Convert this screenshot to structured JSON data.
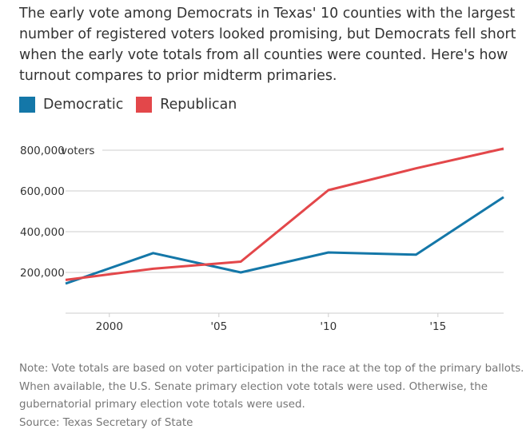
{
  "description": "The early vote among Democrats in Texas' 10 counties with the largest number of registered voters looked promising, but Democrats fell short when the early vote totals from all counties were counted. Here's how turnout compares to prior midterm primaries.",
  "legend": [
    {
      "label": "Democratic",
      "color": "#1477a8"
    },
    {
      "label": "Republican",
      "color": "#e3474a"
    }
  ],
  "chart_data": {
    "type": "line",
    "ylabel": "voters",
    "ylim": [
      0,
      800000
    ],
    "xlim": [
      1998,
      2018
    ],
    "y_ticks": [
      {
        "value": 200000,
        "label": "200,000"
      },
      {
        "value": 400000,
        "label": "400,000"
      },
      {
        "value": 600000,
        "label": "600,000"
      },
      {
        "value": 800000,
        "label": "800,000"
      }
    ],
    "x_ticks": [
      {
        "value": 2000,
        "label": "2000"
      },
      {
        "value": 2005,
        "label": "'05"
      },
      {
        "value": 2010,
        "label": "'10"
      },
      {
        "value": 2015,
        "label": "'15"
      }
    ],
    "x": [
      1998,
      2002,
      2006,
      2010,
      2014,
      2018
    ],
    "series": [
      {
        "name": "Democratic",
        "color": "#1477a8",
        "values": [
          145000,
          295000,
          200000,
          298000,
          287000,
          570000
        ]
      },
      {
        "name": "Republican",
        "color": "#e3474a",
        "values": [
          163000,
          218000,
          253000,
          604000,
          711000,
          808000
        ]
      }
    ],
    "grid": true
  },
  "footnote": {
    "note": "Note: Vote totals are based on voter participation in the race at the top of the primary ballots. When available, the U.S. Senate primary election vote totals were used. Otherwise, the gubernatorial primary election vote totals were used.",
    "source": "Source: Texas Secretary of State"
  }
}
